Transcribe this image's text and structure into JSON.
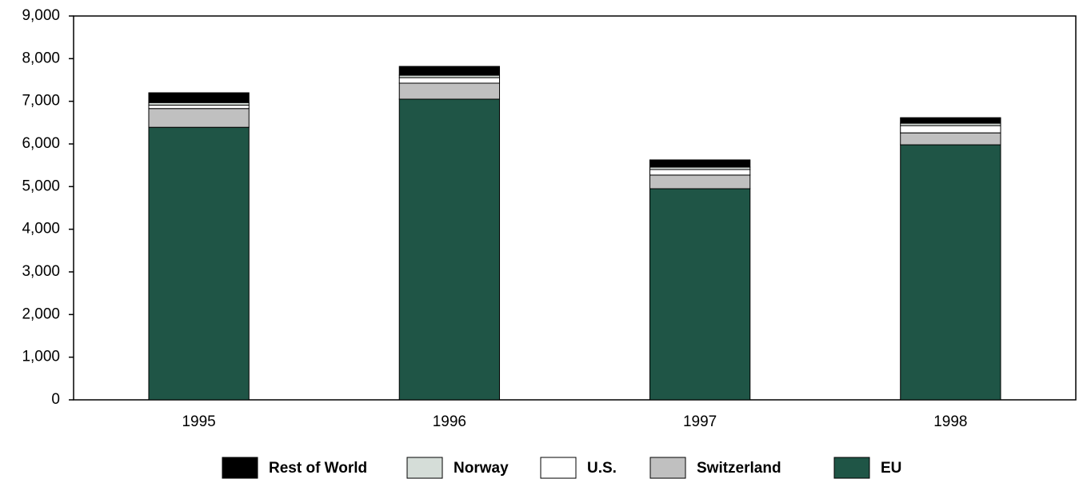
{
  "chart_data": {
    "type": "stacked_bar",
    "categories": [
      "1995",
      "1996",
      "1997",
      "1998"
    ],
    "series": [
      {
        "name": "Rest of World",
        "color": "#000000",
        "values": [
          230,
          207,
          170,
          130
        ]
      },
      {
        "name": "Norway",
        "color": "#d5ddd8",
        "values": [
          60,
          56,
          56,
          56
        ]
      },
      {
        "name": "U.S.",
        "color": "#ffffff",
        "values": [
          80,
          130,
          130,
          170
        ]
      },
      {
        "name": "Switzerland",
        "color": "#c0c0c0",
        "values": [
          440,
          375,
          320,
          280
        ]
      },
      {
        "name": "EU",
        "color": "#1f5546",
        "values": [
          6390,
          7050,
          4950,
          5980
        ]
      }
    ],
    "ylim": [
      0,
      9000
    ],
    "yticks": [
      0,
      {
        "value": 1000,
        "label": "1,000"
      },
      {
        "value": 2000,
        "label": "2,000"
      },
      {
        "value": 3000,
        "label": "3,000"
      },
      {
        "value": 4000,
        "label": "4,000"
      },
      {
        "value": 5000,
        "label": "5,000"
      },
      {
        "value": 6000,
        "label": "6,000"
      },
      {
        "value": 7000,
        "label": "7,000"
      },
      {
        "value": 8000,
        "label": "8,000"
      },
      {
        "value": 9000,
        "label": "9,000"
      }
    ],
    "legend": "bottom"
  }
}
